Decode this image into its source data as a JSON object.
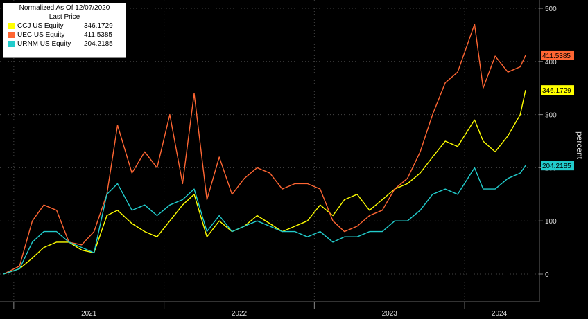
{
  "legend": {
    "header1": "Normalized As Of  12/07/2020",
    "header2": "Last Price"
  },
  "chart_data": {
    "type": "line",
    "title": "",
    "xlabel": "",
    "ylabel": "percent",
    "ylim": [
      -50,
      520
    ],
    "yticks": [
      0,
      100,
      200,
      300,
      400,
      500
    ],
    "x_axis_labels": [
      "2021",
      "2022",
      "2023",
      "2024"
    ],
    "grid": true,
    "legend_position": "top-left",
    "x": [
      "2020-12-07",
      "2021-01-15",
      "2021-02-15",
      "2021-03-15",
      "2021-04-15",
      "2021-05-15",
      "2021-06-15",
      "2021-07-15",
      "2021-08-15",
      "2021-09-10",
      "2021-10-15",
      "2021-11-15",
      "2021-12-15",
      "2022-01-15",
      "2022-02-15",
      "2022-03-15",
      "2022-04-15",
      "2022-05-15",
      "2022-06-15",
      "2022-07-15",
      "2022-08-15",
      "2022-09-15",
      "2022-10-15",
      "2022-11-15",
      "2022-12-15",
      "2023-01-15",
      "2023-02-15",
      "2023-03-15",
      "2023-04-15",
      "2023-05-15",
      "2023-06-15",
      "2023-07-15",
      "2023-08-15",
      "2023-09-15",
      "2023-10-15",
      "2023-11-15",
      "2023-12-15",
      "2024-01-25",
      "2024-02-15",
      "2024-03-15",
      "2024-04-15",
      "2024-05-15",
      "2024-05-28"
    ],
    "series": [
      {
        "name": "CCJ US Equity",
        "last_price": "346.1729",
        "color": "#ffff00",
        "values": [
          0,
          10,
          30,
          50,
          60,
          60,
          45,
          40,
          110,
          120,
          95,
          80,
          70,
          100,
          130,
          150,
          70,
          100,
          80,
          90,
          110,
          95,
          80,
          90,
          100,
          130,
          110,
          140,
          150,
          120,
          140,
          160,
          170,
          190,
          220,
          250,
          240,
          290,
          250,
          230,
          260,
          300,
          346.1729
        ]
      },
      {
        "name": "UEC US Equity",
        "last_price": "411.5385",
        "color": "#ff6633",
        "values": [
          0,
          15,
          100,
          130,
          120,
          60,
          55,
          80,
          150,
          280,
          190,
          230,
          200,
          300,
          170,
          340,
          140,
          220,
          150,
          180,
          200,
          190,
          160,
          170,
          170,
          160,
          100,
          80,
          90,
          110,
          120,
          160,
          180,
          230,
          300,
          360,
          380,
          470,
          350,
          410,
          380,
          390,
          411.5385
        ]
      },
      {
        "name": "URNM US Equity",
        "last_price": "204.2185",
        "color": "#22cccc",
        "values": [
          0,
          10,
          60,
          80,
          80,
          60,
          50,
          40,
          150,
          170,
          120,
          130,
          110,
          130,
          140,
          160,
          80,
          110,
          80,
          90,
          100,
          90,
          80,
          80,
          70,
          80,
          60,
          70,
          70,
          80,
          80,
          100,
          100,
          120,
          150,
          160,
          150,
          200,
          160,
          160,
          180,
          190,
          204.2185
        ]
      }
    ]
  }
}
